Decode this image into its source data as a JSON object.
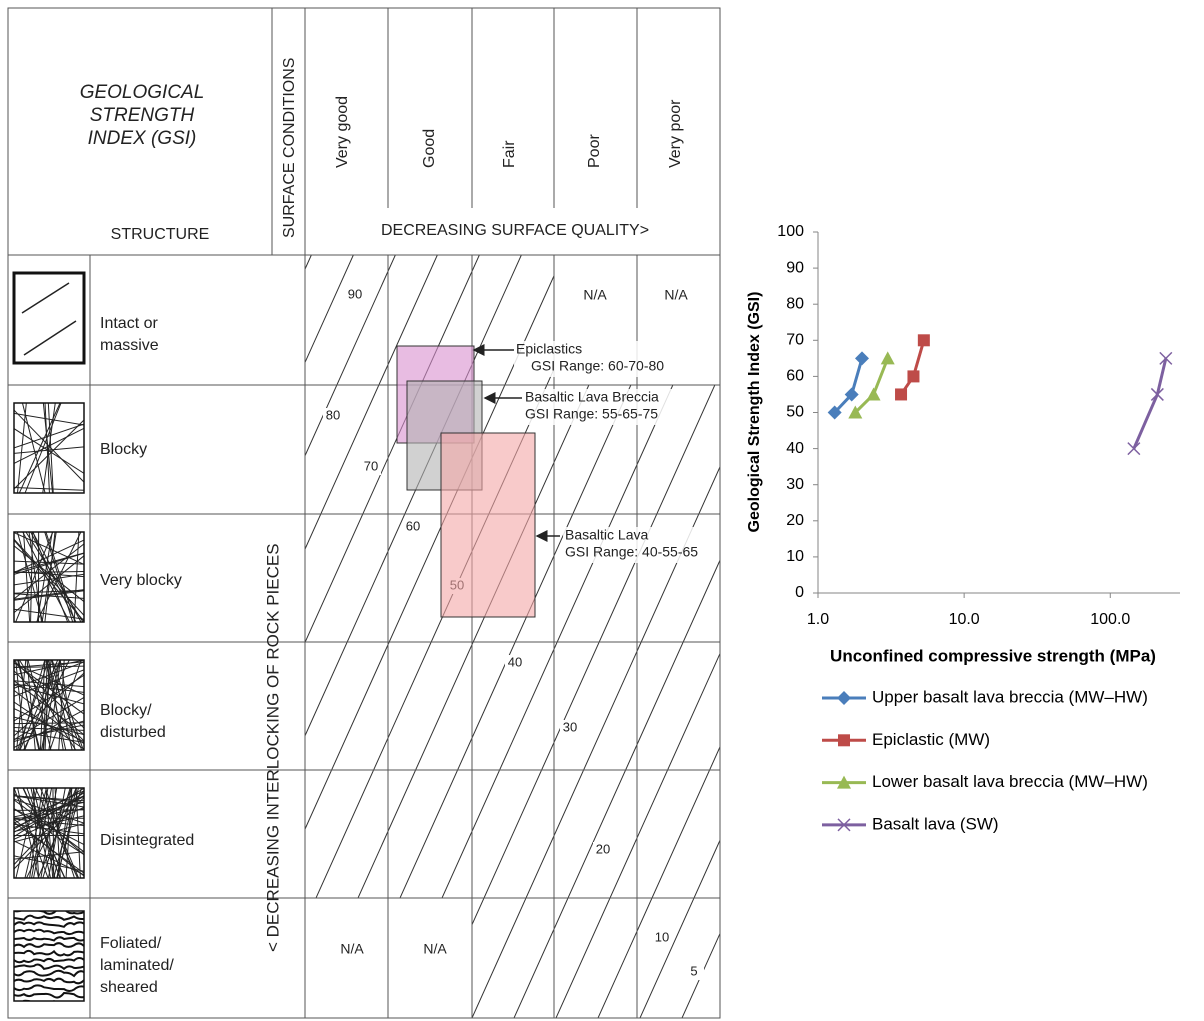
{
  "gsi_chart": {
    "title_lines": [
      "GEOLOGICAL",
      "STRENGTH",
      "INDEX (GSI)"
    ],
    "structure_label": "STRUCTURE",
    "surface_label": "SURFACE CONDITIONS",
    "surface_columns": [
      "Very good",
      "Good",
      "Fair",
      "Poor",
      "Very poor"
    ],
    "surface_axis": "DECREASING SURFACE QUALITY>",
    "interlocking_axis": "< DECREASING INTERLOCKING OF ROCK PIECES",
    "rows": [
      [
        "Intact or",
        "massive"
      ],
      [
        "Blocky"
      ],
      [
        "Very blocky"
      ],
      [
        "Blocky/",
        "disturbed"
      ],
      [
        "Disintegrated"
      ],
      [
        "Foliated/",
        "laminated/",
        "sheared"
      ]
    ],
    "na_labels": [
      "N/A",
      "N/A",
      "N/A",
      "N/A"
    ],
    "contours": [
      90,
      80,
      70,
      60,
      50,
      40,
      30,
      20,
      10,
      5
    ],
    "zones": [
      {
        "name": "Epiclastics",
        "range": "GSI Range: 60-70-80"
      },
      {
        "name": "Basaltic Lava Breccia",
        "range": "GSI Range: 55-65-75"
      },
      {
        "name": "Basaltic Lava",
        "range": "GSI Range: 40-55-65"
      }
    ]
  },
  "chart_data": {
    "type": "line",
    "x_label": "Unconfined compressive strength (MPa)",
    "y_label": "Geological Strength Index (GSI)",
    "xscale": "log",
    "xlim": [
      1,
      300
    ],
    "xticks": [
      {
        "value": 1,
        "label": "1.0"
      },
      {
        "value": 10,
        "label": "10.0"
      },
      {
        "value": 100,
        "label": "100.0"
      }
    ],
    "ylim": [
      0,
      100
    ],
    "yticks": [
      0,
      10,
      20,
      30,
      40,
      50,
      60,
      70,
      80,
      90,
      100
    ],
    "grid": false,
    "legend": "bottom",
    "series": [
      {
        "name": "Upper basalt lava breccia (MW–HW)",
        "color": "#4a7ebb",
        "marker": "diamond",
        "x": [
          1.3,
          1.7,
          2.0
        ],
        "values": [
          50,
          55,
          65
        ]
      },
      {
        "name": "Epiclastic (MW)",
        "color": "#be4b48",
        "marker": "square",
        "x": [
          3.7,
          4.5,
          5.3
        ],
        "values": [
          55,
          60,
          70
        ]
      },
      {
        "name": "Lower basalt lava breccia (MW–HW)",
        "color": "#98b954",
        "marker": "triangle",
        "x": [
          1.8,
          2.4,
          3.0
        ],
        "values": [
          50,
          55,
          65
        ]
      },
      {
        "name": "Basalt lava (SW)",
        "color": "#7d60a0",
        "marker": "x",
        "x": [
          145,
          210,
          240
        ],
        "values": [
          40,
          55,
          65
        ]
      }
    ]
  }
}
